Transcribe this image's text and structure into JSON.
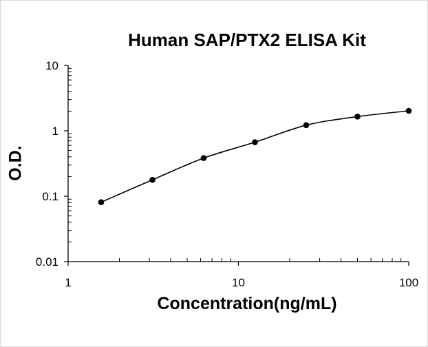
{
  "chart_data": {
    "type": "scatter",
    "title": "Human SAP/PTX2 ELISA Kit",
    "xlabel": "Concentration(ng/mL)",
    "ylabel": "O.D.",
    "xscale": "log",
    "yscale": "log",
    "xlim": [
      1,
      100
    ],
    "ylim": [
      0.01,
      10
    ],
    "xticks": [
      "1",
      "10",
      "100"
    ],
    "yticks": [
      "0.01",
      "0.1",
      "1",
      "10"
    ],
    "grid": false,
    "legend": "none",
    "series": [
      {
        "x": [
          1.5625,
          3.125,
          6.25,
          12.5,
          25,
          50,
          100
        ],
        "y": [
          0.081,
          0.178,
          0.383,
          0.67,
          1.22,
          1.65,
          2.02
        ],
        "marker": "circle",
        "line": "smooth"
      }
    ],
    "colors": {
      "marker": "#000000",
      "line": "#000000",
      "axis": "#000000"
    }
  }
}
